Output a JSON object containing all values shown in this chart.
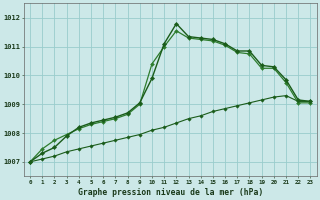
{
  "xlabel": "Graphe pression niveau de la mer (hPa)",
  "xlim": [
    -0.5,
    23.5
  ],
  "ylim": [
    1006.5,
    1012.5
  ],
  "yticks": [
    1007,
    1008,
    1009,
    1010,
    1011,
    1012
  ],
  "xticks": [
    0,
    1,
    2,
    3,
    4,
    5,
    6,
    7,
    8,
    9,
    10,
    11,
    12,
    13,
    14,
    15,
    16,
    17,
    18,
    19,
    20,
    21,
    22,
    23
  ],
  "background_color": "#cce8e8",
  "grid_color": "#99cccc",
  "line_color_dark": "#1a5c1a",
  "line_color_mid": "#2e7d2e",
  "series": {
    "line1": [
      1007.0,
      1007.3,
      1007.5,
      1007.9,
      1008.2,
      1008.35,
      1008.45,
      1008.55,
      1008.7,
      1009.05,
      1009.9,
      1011.1,
      1011.8,
      1011.35,
      1011.3,
      1011.25,
      1011.1,
      1010.85,
      1010.85,
      1010.35,
      1010.3,
      1009.85,
      1009.15,
      1009.1
    ],
    "line2": [
      1007.0,
      1007.45,
      1007.75,
      1007.95,
      1008.15,
      1008.3,
      1008.4,
      1008.5,
      1008.65,
      1009.0,
      1010.4,
      1011.0,
      1011.55,
      1011.3,
      1011.25,
      1011.2,
      1011.05,
      1010.8,
      1010.75,
      1010.25,
      1010.25,
      1009.75,
      1009.05,
      1009.05
    ],
    "line3": [
      1007.0,
      1007.1,
      1007.2,
      1007.35,
      1007.45,
      1007.55,
      1007.65,
      1007.75,
      1007.85,
      1007.95,
      1008.1,
      1008.2,
      1008.35,
      1008.5,
      1008.6,
      1008.75,
      1008.85,
      1008.95,
      1009.05,
      1009.15,
      1009.25,
      1009.3,
      1009.1,
      1009.1
    ]
  }
}
